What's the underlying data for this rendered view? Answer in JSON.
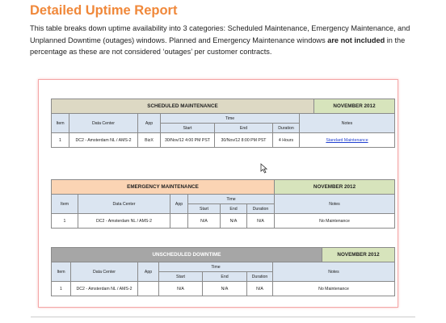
{
  "header": {
    "title": "Detailed Uptime Report",
    "intro": {
      "before": "This table breaks down uptime availability into 3 categories: Scheduled Maintenance, Emergency Maintenance, and Unplanned Downtime (outages) windows.  Planned and Emergency Maintenance windows ",
      "bold": "are not included",
      "after": " in the percentage as these are not considered ‘outages’ per customer contracts."
    }
  },
  "tables": [
    {
      "title": "SCHEDULED MAINTENANCE",
      "period": "NOVEMBER 2012",
      "columns": [
        "Item",
        "Data Center",
        "App",
        "Time",
        "Notes"
      ],
      "time_columns": [
        "Start",
        "End",
        "Duration"
      ],
      "rows": [
        [
          "1",
          "DC2 - Amsterdam NL / AMS-2",
          "BizX",
          "30/Nov/12 4:00 PM PST",
          "30/Nov/12 8:00 PM PST",
          "4 Hours",
          "Standard Maintenance"
        ]
      ]
    },
    {
      "title": "EMERGENCY MAINTENANCE",
      "period": "NOVEMBER 2012",
      "columns": [
        "Item",
        "Data Center",
        "App",
        "Time",
        "Notes"
      ],
      "time_columns": [
        "Start",
        "End",
        "Duration"
      ],
      "rows": [
        [
          "1",
          "DC2 - Amsterdam NL / AMS-2",
          null,
          "N/A",
          "N/A",
          "N/A",
          "No Maintenance"
        ]
      ]
    },
    {
      "title": "UNSCHEDULED DOWNTIME",
      "period": "NOVEMBER 2012",
      "columns": [
        "Item",
        "Data Center",
        "App",
        "Time",
        "Notes"
      ],
      "time_columns": [
        "Start",
        "End",
        "Duration"
      ],
      "rows": [
        [
          "1",
          "DC2 - Amsterdam NL / AMS-2",
          null,
          "N/A",
          "N/A",
          "N/A",
          "No Maintenance"
        ]
      ]
    }
  ]
}
